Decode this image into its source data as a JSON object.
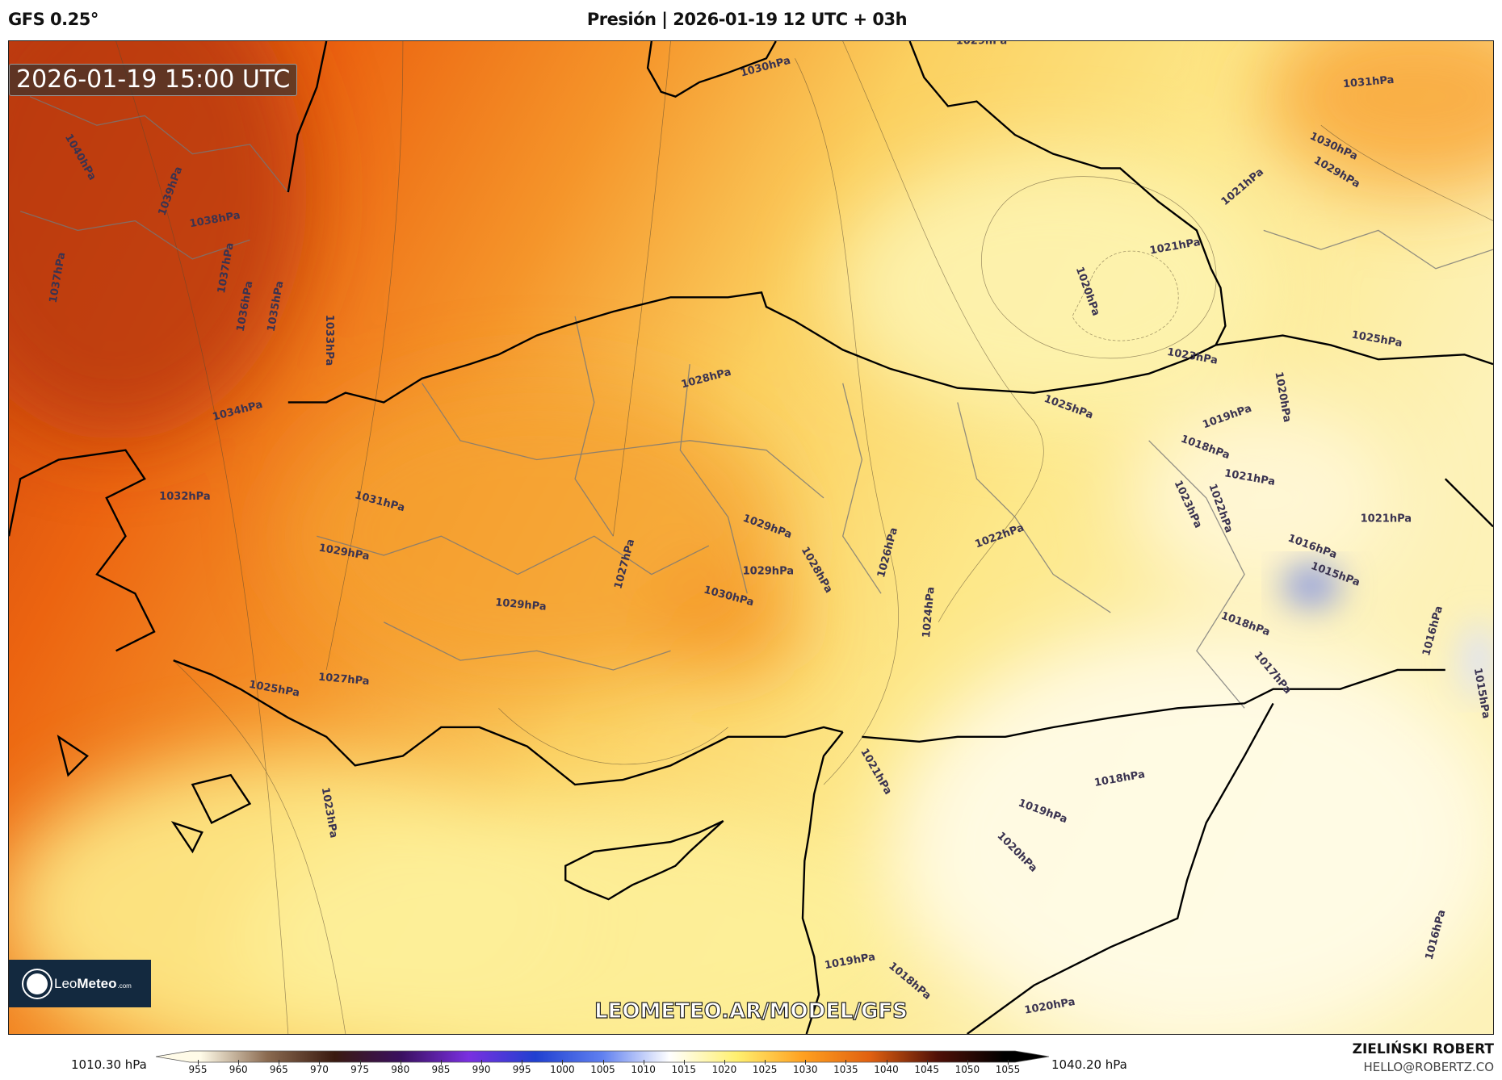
{
  "header": {
    "model": "GFS 0.25°",
    "title": "Presión | 2026-01-19 12 UTC + 03h"
  },
  "map": {
    "valid_time": "2026-01-19 15:00 UTC",
    "watermark": "LEOMETEO.AR/MODEL/GFS",
    "logo_text": "LeoMeteo.com",
    "contour_labels": [
      "1029hPa",
      "1030hPa",
      "1031hPa",
      "1030hPa",
      "1029hPa",
      "1021hPa",
      "1021hPa",
      "1020hPa",
      "1040hPa",
      "1039hPa",
      "1038hPa",
      "1037hPa",
      "1037hPa",
      "1036hPa",
      "1035hPa",
      "1033hPa",
      "1034hPa",
      "1032hPa",
      "1031hPa",
      "1029hPa",
      "1028hPa",
      "1025hPa",
      "1023hPa",
      "1020hPa",
      "1025hPa",
      "1019hPa",
      "1018hPa",
      "1021hPa",
      "1022hPa",
      "1023hPa",
      "1021hPa",
      "1022hPa",
      "1026hPa",
      "1029hPa",
      "1028hPa",
      "1029hPa",
      "1030hPa",
      "1027hPa",
      "1029hPa",
      "1024hPa",
      "1016hPa",
      "1015hPa",
      "1018hPa",
      "1017hPa",
      "1016hPa",
      "1015hPa",
      "1025hPa",
      "1027hPa",
      "1023hPa",
      "1021hPa",
      "1018hPa",
      "1019hPa",
      "1020hPa",
      "1016hPa",
      "1019hPa",
      "1018hPa",
      "1020hPa"
    ],
    "field_colors": {
      "high": "#c8400c",
      "mid": "#f59a2a",
      "low": "#fdf4b0",
      "min_area": "#8a9ae0"
    }
  },
  "colorbar": {
    "min_label": "1010.30 hPa",
    "max_label": "1040.20 hPa",
    "unit": "hPa",
    "ticks": [
      "955",
      "960",
      "965",
      "970",
      "975",
      "980",
      "985",
      "990",
      "995",
      "1000",
      "1005",
      "1010",
      "1015",
      "1020",
      "1025",
      "1030",
      "1035",
      "1040",
      "1045",
      "1050",
      "1055"
    ],
    "colors": [
      "#fffbe8",
      "#8a6a50",
      "#3a1a10",
      "#3a1060",
      "#7a30e0",
      "#2040d0",
      "#6080f0",
      "#ffffff",
      "#fff070",
      "#ffa020",
      "#e06010",
      "#501008",
      "#000000"
    ]
  },
  "footer": {
    "author": "ZIELIŃSKI ROBERT",
    "email": "HELLO@ROBERTZ.CO"
  }
}
